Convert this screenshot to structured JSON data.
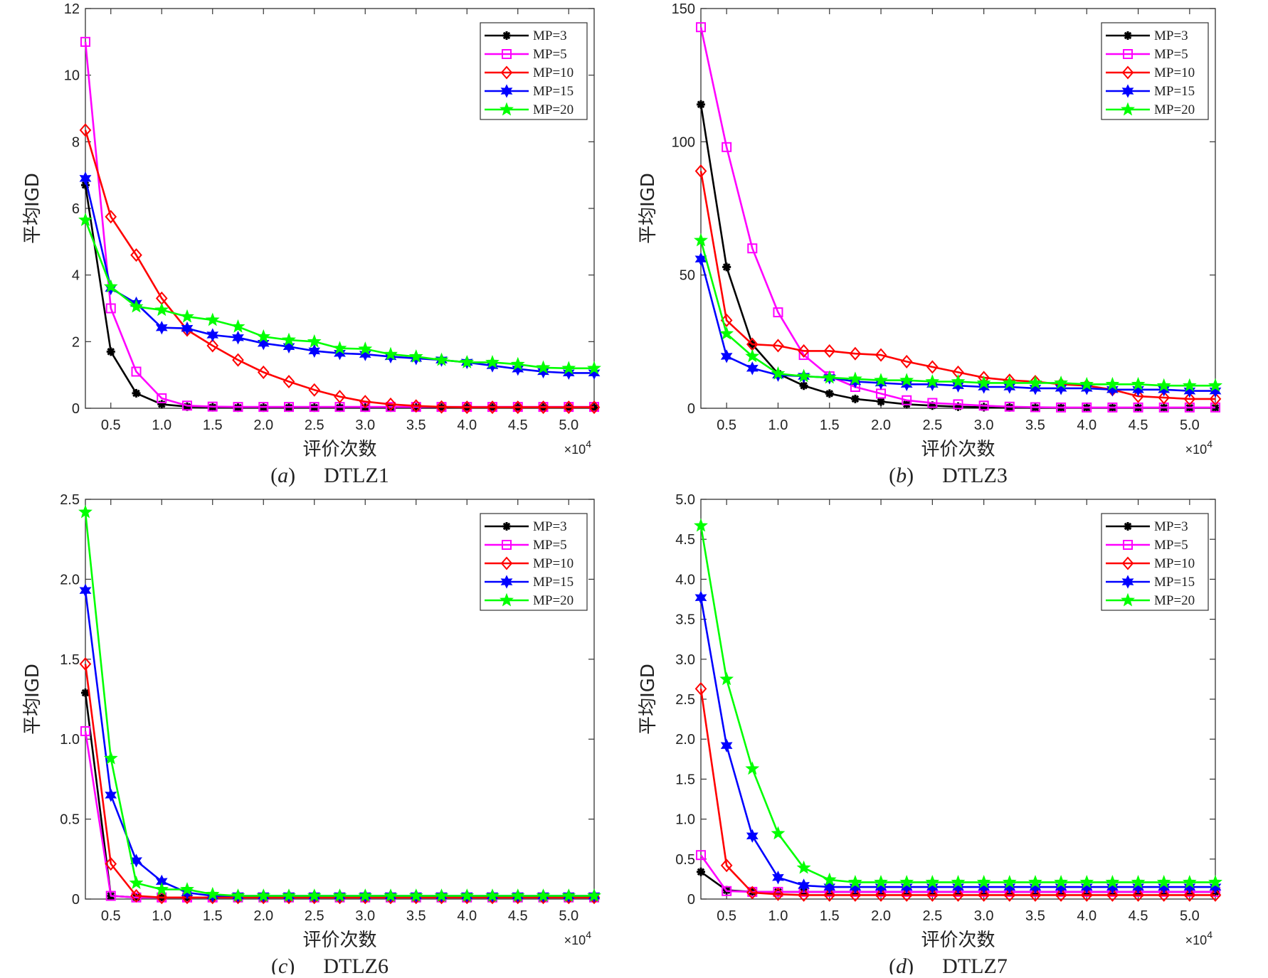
{
  "chart_data": [
    {
      "type": "line",
      "panel": "(a)",
      "caption_letter": "a",
      "caption_name": "DTLZ1",
      "xlabel": "评价次数",
      "ylabel": "平均IGD",
      "multiplier": "×10",
      "multiplier_exp": "4",
      "xlim": [
        0.25,
        5.25
      ],
      "ylim": [
        0,
        12
      ],
      "xticks": [
        "0.5",
        "1.0",
        "1.5",
        "2.0",
        "2.5",
        "3.0",
        "3.5",
        "4.0",
        "4.5",
        "5.0"
      ],
      "yticks": [
        "0",
        "2",
        "4",
        "6",
        "8",
        "10",
        "12"
      ],
      "grid": false,
      "legend": "top-right",
      "x": [
        0.25,
        0.5,
        0.75,
        1.0,
        1.25,
        1.5,
        1.75,
        2.0,
        2.25,
        2.5,
        2.75,
        3.0,
        3.25,
        3.5,
        3.75,
        4.0,
        4.25,
        4.5,
        4.75,
        5.0,
        5.25
      ],
      "series": [
        {
          "name": "MP=3",
          "color": "#000000",
          "marker": "asterisk",
          "values": [
            6.7,
            1.7,
            0.45,
            0.12,
            0.05,
            0.03,
            0.02,
            0.02,
            0.02,
            0.02,
            0.02,
            0.02,
            0.02,
            0.02,
            0.02,
            0.02,
            0.02,
            0.02,
            0.02,
            0.02,
            0.02
          ]
        },
        {
          "name": "MP=5",
          "color": "#ff00ff",
          "marker": "square",
          "values": [
            11.0,
            3.0,
            1.1,
            0.3,
            0.08,
            0.05,
            0.04,
            0.04,
            0.04,
            0.04,
            0.04,
            0.04,
            0.04,
            0.04,
            0.04,
            0.04,
            0.04,
            0.04,
            0.04,
            0.04,
            0.04
          ]
        },
        {
          "name": "MP=10",
          "color": "#ff0000",
          "marker": "diamond",
          "values": [
            8.35,
            5.75,
            4.6,
            3.3,
            2.35,
            1.88,
            1.45,
            1.08,
            0.8,
            0.55,
            0.35,
            0.2,
            0.12,
            0.07,
            0.04,
            0.03,
            0.03,
            0.03,
            0.03,
            0.03,
            0.03
          ]
        },
        {
          "name": "MP=15",
          "color": "#0000ff",
          "marker": "hexagram",
          "values": [
            6.9,
            3.6,
            3.15,
            2.42,
            2.4,
            2.2,
            2.12,
            1.95,
            1.85,
            1.72,
            1.65,
            1.62,
            1.55,
            1.5,
            1.45,
            1.38,
            1.28,
            1.18,
            1.1,
            1.06,
            1.06
          ]
        },
        {
          "name": "MP=20",
          "color": "#00ff00",
          "marker": "pentagram",
          "values": [
            5.65,
            3.65,
            3.05,
            2.95,
            2.75,
            2.65,
            2.45,
            2.15,
            2.05,
            2.0,
            1.8,
            1.78,
            1.62,
            1.55,
            1.45,
            1.38,
            1.38,
            1.32,
            1.22,
            1.2,
            1.2
          ]
        }
      ]
    },
    {
      "type": "line",
      "panel": "(b)",
      "caption_letter": "b",
      "caption_name": "DTLZ3",
      "xlabel": "评价次数",
      "ylabel": "平均IGD",
      "multiplier": "×10",
      "multiplier_exp": "4",
      "xlim": [
        0.25,
        5.25
      ],
      "ylim": [
        0,
        150
      ],
      "xticks": [
        "0.5",
        "1.0",
        "1.5",
        "2.0",
        "2.5",
        "3.0",
        "3.5",
        "4.0",
        "4.5",
        "5.0"
      ],
      "yticks": [
        "0",
        "50",
        "100",
        "150"
      ],
      "grid": false,
      "legend": "top-right",
      "x": [
        0.25,
        0.5,
        0.75,
        1.0,
        1.25,
        1.5,
        1.75,
        2.0,
        2.25,
        2.5,
        2.75,
        3.0,
        3.25,
        3.5,
        3.75,
        4.0,
        4.25,
        4.5,
        4.75,
        5.0,
        5.25
      ],
      "series": [
        {
          "name": "MP=3",
          "color": "#000000",
          "marker": "asterisk",
          "values": [
            114,
            53,
            24,
            13,
            8.5,
            5.5,
            3.5,
            2.5,
            1.5,
            1.0,
            0.6,
            0.4,
            0.3,
            0.2,
            0.2,
            0.2,
            0.2,
            0.2,
            0.2,
            0.2,
            0.2
          ]
        },
        {
          "name": "MP=5",
          "color": "#ff00ff",
          "marker": "square",
          "values": [
            143,
            98,
            60,
            36,
            20,
            12,
            8,
            5.5,
            3,
            2,
            1.5,
            1,
            0.6,
            0.4,
            0.3,
            0.3,
            0.3,
            0.3,
            0.3,
            0.3,
            0.3
          ]
        },
        {
          "name": "MP=10",
          "color": "#ff0000",
          "marker": "diamond",
          "values": [
            89,
            33,
            24,
            23.5,
            21.5,
            21.5,
            20.5,
            20,
            17.5,
            15.5,
            13.5,
            11.5,
            10.5,
            10,
            9,
            8.5,
            7,
            4.5,
            4,
            3.5,
            3.5
          ]
        },
        {
          "name": "MP=15",
          "color": "#0000ff",
          "marker": "hexagram",
          "values": [
            56,
            19.5,
            15,
            12.5,
            12,
            11.5,
            10,
            9.5,
            9,
            9,
            8.5,
            8,
            8,
            7.5,
            7.5,
            7.5,
            7,
            7,
            7,
            6.5,
            6.5
          ]
        },
        {
          "name": "MP=20",
          "color": "#00ff00",
          "marker": "pentagram",
          "values": [
            63,
            28,
            19.5,
            13,
            12,
            11.5,
            11,
            10.5,
            10.5,
            10,
            10,
            9.5,
            9.5,
            9.5,
            9.5,
            9,
            9,
            9,
            8.5,
            8.5,
            8.5
          ]
        }
      ]
    },
    {
      "type": "line",
      "panel": "(c)",
      "caption_letter": "c",
      "caption_name": "DTLZ6",
      "xlabel": "评价次数",
      "ylabel": "平均IGD",
      "multiplier": "×10",
      "multiplier_exp": "4",
      "xlim": [
        0.25,
        5.25
      ],
      "ylim": [
        0,
        2.5
      ],
      "xticks": [
        "0.5",
        "1.0",
        "1.5",
        "2.0",
        "2.5",
        "3.0",
        "3.5",
        "4.0",
        "4.5",
        "5.0"
      ],
      "yticks": [
        "0",
        "0.5",
        "1.0",
        "1.5",
        "2.0",
        "2.5"
      ],
      "grid": false,
      "legend": "top-right",
      "x": [
        0.25,
        0.5,
        0.75,
        1.0,
        1.25,
        1.5,
        1.75,
        2.0,
        2.25,
        2.5,
        2.75,
        3.0,
        3.25,
        3.5,
        3.75,
        4.0,
        4.25,
        4.5,
        4.75,
        5.0,
        5.25
      ],
      "series": [
        {
          "name": "MP=3",
          "color": "#000000",
          "marker": "asterisk",
          "values": [
            1.29,
            0.02,
            0.01,
            0.01,
            0.01,
            0.01,
            0.01,
            0.01,
            0.01,
            0.01,
            0.01,
            0.01,
            0.01,
            0.01,
            0.01,
            0.01,
            0.01,
            0.01,
            0.01,
            0.01,
            0.01
          ]
        },
        {
          "name": "MP=5",
          "color": "#ff00ff",
          "marker": "square",
          "values": [
            1.05,
            0.02,
            0.01,
            0.01,
            0.01,
            0.01,
            0.01,
            0.01,
            0.01,
            0.01,
            0.01,
            0.01,
            0.01,
            0.01,
            0.01,
            0.01,
            0.01,
            0.01,
            0.01,
            0.01,
            0.01
          ]
        },
        {
          "name": "MP=10",
          "color": "#ff0000",
          "marker": "diamond",
          "values": [
            1.47,
            0.22,
            0.02,
            0.01,
            0.01,
            0.01,
            0.01,
            0.01,
            0.01,
            0.01,
            0.01,
            0.01,
            0.01,
            0.01,
            0.01,
            0.01,
            0.01,
            0.01,
            0.01,
            0.01,
            0.01
          ]
        },
        {
          "name": "MP=15",
          "color": "#0000ff",
          "marker": "hexagram",
          "values": [
            1.93,
            0.65,
            0.24,
            0.11,
            0.04,
            0.02,
            0.02,
            0.02,
            0.02,
            0.02,
            0.02,
            0.02,
            0.02,
            0.02,
            0.02,
            0.02,
            0.02,
            0.02,
            0.02,
            0.02,
            0.02
          ]
        },
        {
          "name": "MP=20",
          "color": "#00ff00",
          "marker": "pentagram",
          "values": [
            2.42,
            0.88,
            0.1,
            0.06,
            0.06,
            0.03,
            0.02,
            0.02,
            0.02,
            0.02,
            0.02,
            0.02,
            0.02,
            0.02,
            0.02,
            0.02,
            0.02,
            0.02,
            0.02,
            0.02,
            0.02
          ]
        }
      ]
    },
    {
      "type": "line",
      "panel": "(d)",
      "caption_letter": "d",
      "caption_name": "DTLZ7",
      "xlabel": "评价次数",
      "ylabel": "平均IGD",
      "multiplier": "×10",
      "multiplier_exp": "4",
      "xlim": [
        0.25,
        5.25
      ],
      "ylim": [
        0,
        5
      ],
      "xticks": [
        "0.5",
        "1.0",
        "1.5",
        "2.0",
        "2.5",
        "3.0",
        "3.5",
        "4.0",
        "4.5",
        "5.0"
      ],
      "yticks": [
        "0",
        "0.5",
        "1.0",
        "1.5",
        "2.0",
        "2.5",
        "3.0",
        "3.5",
        "4.0",
        "4.5",
        "5.0"
      ],
      "grid": false,
      "legend": "top-right",
      "x": [
        0.25,
        0.5,
        0.75,
        1.0,
        1.25,
        1.5,
        1.75,
        2.0,
        2.25,
        2.5,
        2.75,
        3.0,
        3.25,
        3.5,
        3.75,
        4.0,
        4.25,
        4.5,
        4.75,
        5.0,
        5.25
      ],
      "series": [
        {
          "name": "MP=3",
          "color": "#000000",
          "marker": "asterisk",
          "values": [
            0.34,
            0.11,
            0.09,
            0.09,
            0.09,
            0.09,
            0.09,
            0.09,
            0.09,
            0.09,
            0.09,
            0.09,
            0.09,
            0.09,
            0.09,
            0.09,
            0.09,
            0.09,
            0.09,
            0.09,
            0.09
          ]
        },
        {
          "name": "MP=5",
          "color": "#ff00ff",
          "marker": "square",
          "values": [
            0.55,
            0.1,
            0.09,
            0.09,
            0.09,
            0.09,
            0.09,
            0.09,
            0.09,
            0.09,
            0.09,
            0.09,
            0.09,
            0.09,
            0.09,
            0.09,
            0.09,
            0.09,
            0.09,
            0.09,
            0.09
          ]
        },
        {
          "name": "MP=10",
          "color": "#ff0000",
          "marker": "diamond",
          "values": [
            2.63,
            0.42,
            0.08,
            0.06,
            0.05,
            0.05,
            0.05,
            0.05,
            0.05,
            0.05,
            0.05,
            0.05,
            0.05,
            0.05,
            0.05,
            0.05,
            0.05,
            0.05,
            0.05,
            0.05,
            0.05
          ]
        },
        {
          "name": "MP=15",
          "color": "#0000ff",
          "marker": "hexagram",
          "values": [
            3.77,
            1.92,
            0.79,
            0.27,
            0.17,
            0.15,
            0.15,
            0.15,
            0.15,
            0.15,
            0.15,
            0.15,
            0.15,
            0.15,
            0.15,
            0.15,
            0.15,
            0.15,
            0.15,
            0.15,
            0.15
          ]
        },
        {
          "name": "MP=20",
          "color": "#00ff00",
          "marker": "pentagram",
          "values": [
            4.67,
            2.75,
            1.63,
            0.82,
            0.39,
            0.24,
            0.21,
            0.21,
            0.21,
            0.21,
            0.21,
            0.21,
            0.21,
            0.21,
            0.21,
            0.21,
            0.21,
            0.21,
            0.21,
            0.21,
            0.21
          ]
        }
      ]
    }
  ]
}
